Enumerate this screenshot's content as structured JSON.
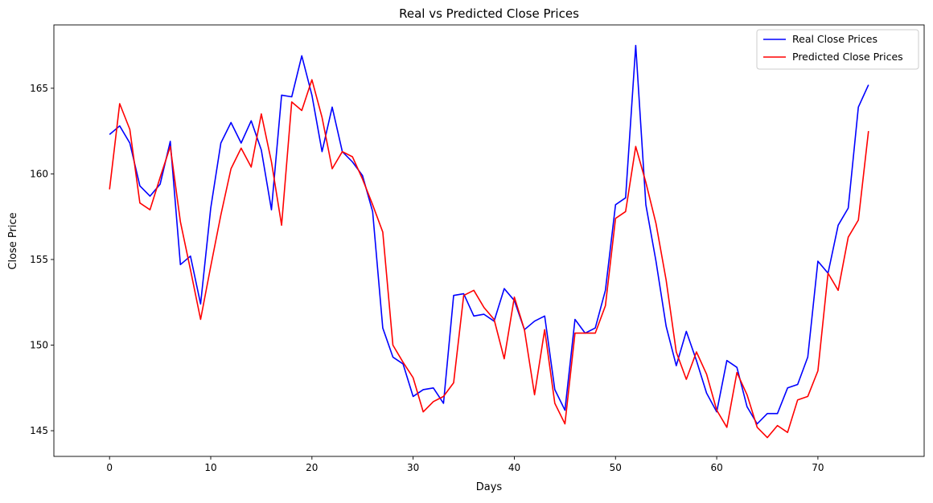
{
  "chart_data": {
    "type": "line",
    "title": "Real vs Predicted Close Prices",
    "xlabel": "Days",
    "ylabel": "Close Price",
    "xlim": [
      -5.5,
      80.5
    ],
    "ylim": [
      143.5,
      168.7
    ],
    "xticks": [
      0,
      10,
      20,
      30,
      40,
      50,
      60,
      70
    ],
    "yticks": [
      145,
      150,
      155,
      160,
      165
    ],
    "grid": false,
    "legend_position": "top-right",
    "series": [
      {
        "name": "Real Close Prices",
        "color": "#0000ff",
        "x": [
          0,
          1,
          2,
          3,
          4,
          5,
          6,
          7,
          8,
          9,
          10,
          11,
          12,
          13,
          14,
          15,
          16,
          17,
          18,
          19,
          20,
          21,
          22,
          23,
          24,
          25,
          26,
          27,
          28,
          29,
          30,
          31,
          32,
          33,
          34,
          35,
          36,
          37,
          38,
          39,
          40,
          41,
          42,
          43,
          44,
          45,
          46,
          47,
          48,
          49,
          50,
          51,
          52,
          53,
          54,
          55,
          56,
          57,
          58,
          59,
          60,
          61,
          62,
          63,
          64,
          65,
          66,
          67,
          68,
          69,
          70,
          71,
          72,
          73,
          74,
          75
        ],
        "values": [
          162.3,
          162.8,
          161.8,
          159.3,
          158.7,
          159.4,
          161.9,
          154.7,
          155.2,
          152.4,
          158.0,
          161.8,
          163.0,
          161.8,
          163.1,
          161.4,
          157.9,
          164.6,
          164.5,
          166.9,
          164.6,
          161.3,
          163.9,
          161.3,
          160.7,
          159.9,
          157.8,
          151.0,
          149.3,
          148.9,
          147.0,
          147.4,
          147.5,
          146.6,
          152.9,
          153.0,
          151.7,
          151.8,
          151.4,
          153.3,
          152.6,
          150.9,
          151.4,
          151.7,
          147.4,
          146.2,
          151.5,
          150.7,
          151.0,
          153.2,
          158.2,
          158.6,
          167.5,
          158.2,
          154.9,
          151.1,
          148.8,
          150.8,
          149.1,
          147.2,
          146.1,
          149.1,
          148.7,
          146.4,
          145.4,
          146.0,
          146.0,
          147.5,
          147.7,
          149.3,
          154.9,
          154.2,
          157.0,
          158.0,
          163.9,
          165.2
        ]
      },
      {
        "name": "Predicted Close Prices",
        "color": "#ff0000",
        "x": [
          0,
          1,
          2,
          3,
          4,
          5,
          6,
          7,
          8,
          9,
          10,
          11,
          12,
          13,
          14,
          15,
          16,
          17,
          18,
          19,
          20,
          21,
          22,
          23,
          24,
          25,
          26,
          27,
          28,
          29,
          30,
          31,
          32,
          33,
          34,
          35,
          36,
          37,
          38,
          39,
          40,
          41,
          42,
          43,
          44,
          45,
          46,
          47,
          48,
          49,
          50,
          51,
          52,
          53,
          54,
          55,
          56,
          57,
          58,
          59,
          60,
          61,
          62,
          63,
          64,
          65,
          66,
          67,
          68,
          69,
          70,
          71,
          72,
          73,
          74,
          75
        ],
        "values": [
          159.1,
          164.1,
          162.6,
          158.3,
          157.9,
          159.8,
          161.6,
          157.2,
          154.4,
          151.5,
          154.6,
          157.6,
          160.3,
          161.5,
          160.4,
          163.5,
          160.7,
          157.0,
          164.2,
          163.7,
          165.5,
          163.3,
          160.3,
          161.3,
          161.0,
          159.7,
          158.2,
          156.6,
          150.0,
          149.0,
          148.1,
          146.1,
          146.7,
          147.0,
          147.8,
          152.9,
          153.2,
          152.2,
          151.5,
          149.2,
          152.8,
          150.9,
          147.1,
          150.9,
          146.6,
          145.4,
          150.7,
          150.7,
          150.7,
          152.3,
          157.4,
          157.8,
          161.6,
          159.5,
          157.1,
          153.8,
          149.6,
          148.0,
          149.6,
          148.3,
          146.2,
          145.2,
          148.4,
          147.1,
          145.2,
          144.6,
          145.3,
          144.9,
          146.8,
          147.0,
          148.5,
          154.2,
          153.2,
          156.3,
          157.3,
          162.5
        ]
      }
    ]
  }
}
